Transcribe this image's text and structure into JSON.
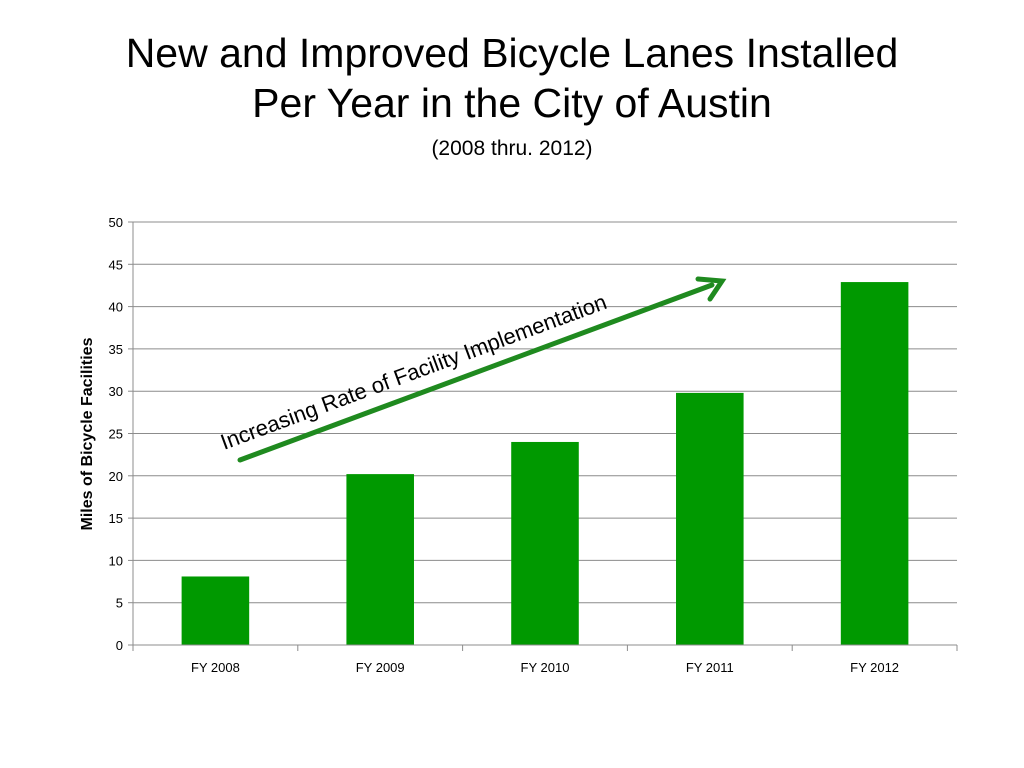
{
  "chart_data": {
    "type": "bar",
    "title_lines": [
      "New and Improved Bicycle Lanes Installed",
      "Per Year in the City of Austin"
    ],
    "subtitle": "(2008 thru. 2012)",
    "categories": [
      "FY 2008",
      "FY 2009",
      "FY 2010",
      "FY 2011",
      "FY 2012"
    ],
    "values": [
      8.1,
      20.2,
      24.0,
      29.8,
      42.9
    ],
    "ylabel": "Miles of Bicycle Facilities",
    "xlabel": "",
    "ylim": [
      0,
      50
    ],
    "y_ticks": [
      "0",
      "5",
      "10",
      "15",
      "20",
      "25",
      "30",
      "35",
      "40",
      "45",
      "50"
    ],
    "grid": true,
    "legend": "none",
    "bar_color": "#009900",
    "annotation": {
      "text": "Increasing Rate of Facility Implementation",
      "color": "#1f8a1f"
    }
  }
}
